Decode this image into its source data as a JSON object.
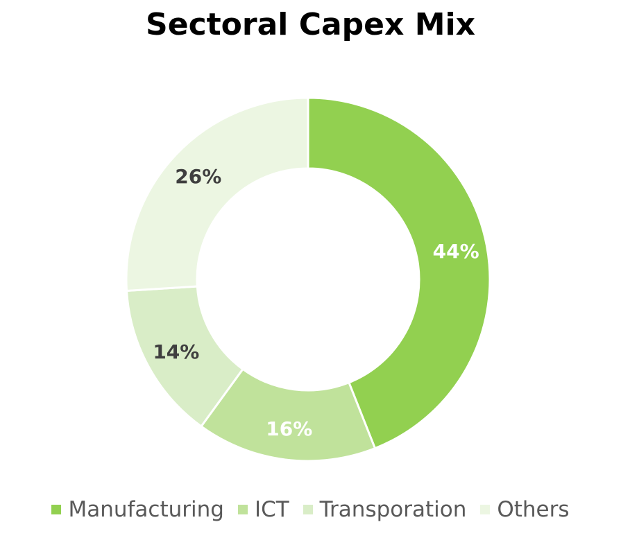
{
  "chart_data": {
    "type": "pie",
    "title": "Sectoral Capex Mix",
    "donut": true,
    "legend_position": "bottom",
    "series": [
      {
        "name": "Manufacturing",
        "value": 44,
        "label": "44%",
        "color": "#92d050",
        "label_color": "#ffffff"
      },
      {
        "name": "ICT",
        "value": 16,
        "label": "16%",
        "color": "#c0e29b",
        "label_color": "#ffffff"
      },
      {
        "name": "Transporation",
        "value": 14,
        "label": "14%",
        "color": "#d9edc7",
        "label_color": "#3f3f3f"
      },
      {
        "name": "Others",
        "value": 26,
        "label": "26%",
        "color": "#ecf6e2",
        "label_color": "#3f3f3f"
      }
    ]
  }
}
